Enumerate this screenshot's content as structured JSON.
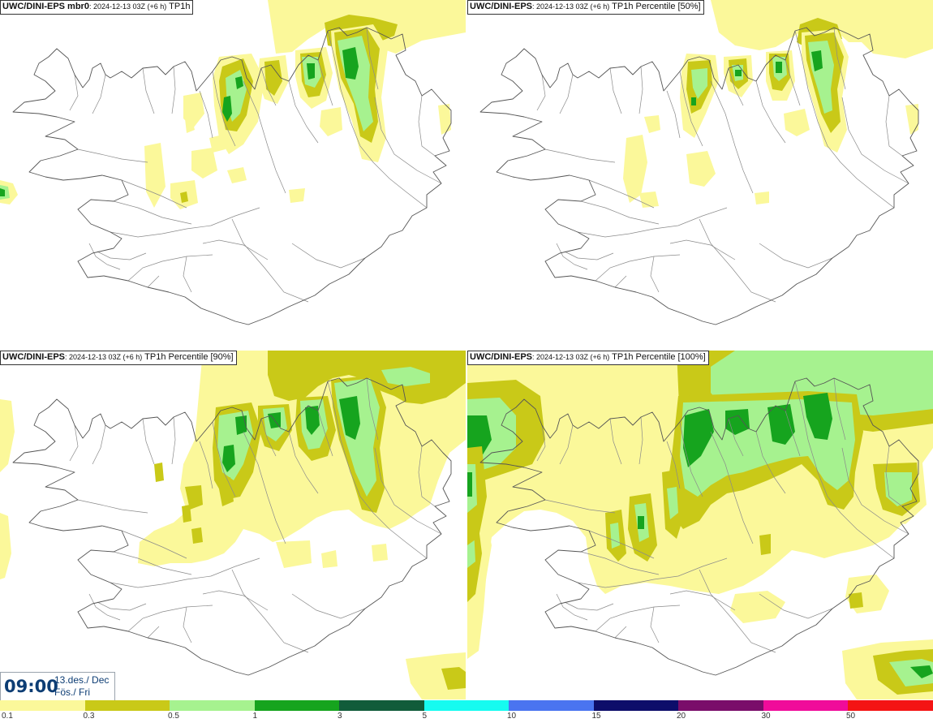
{
  "panels": [
    {
      "model": "UWC/DINI-EPS mbr0",
      "run": ": 2024-12-13 03Z (+6 h)",
      "product": " TP1h"
    },
    {
      "model": "UWC/DINI-EPS",
      "run": ": 2024-12-13 03Z (+6 h)",
      "product": " TP1h Percentile [50%]"
    },
    {
      "model": "UWC/DINI-EPS",
      "run": ": 2024-12-13 03Z (+6 h)",
      "product": " TP1h Percentile [90%]"
    },
    {
      "model": "UWC/DINI-EPS",
      "run": ": 2024-12-13 03Z (+6 h)",
      "product": " TP1h Percentile [100%]"
    }
  ],
  "valid_time": {
    "time": "09:00",
    "date_line1": "13.des./ Dec",
    "date_line2": "Fös./ Fri"
  },
  "legend": {
    "labels": [
      "0.1",
      "0.3",
      "0.5",
      "1",
      "3",
      "5",
      "10",
      "15",
      "20",
      "30",
      "50"
    ],
    "colors": [
      "#fbf89a",
      "#c9c918",
      "#a6f28f",
      "#16a41e",
      "#115c3a",
      "#16fbf0",
      "#4a74f0",
      "#0d0d6a",
      "#7a0d6a",
      "#f00c9a",
      "#f41414"
    ]
  }
}
